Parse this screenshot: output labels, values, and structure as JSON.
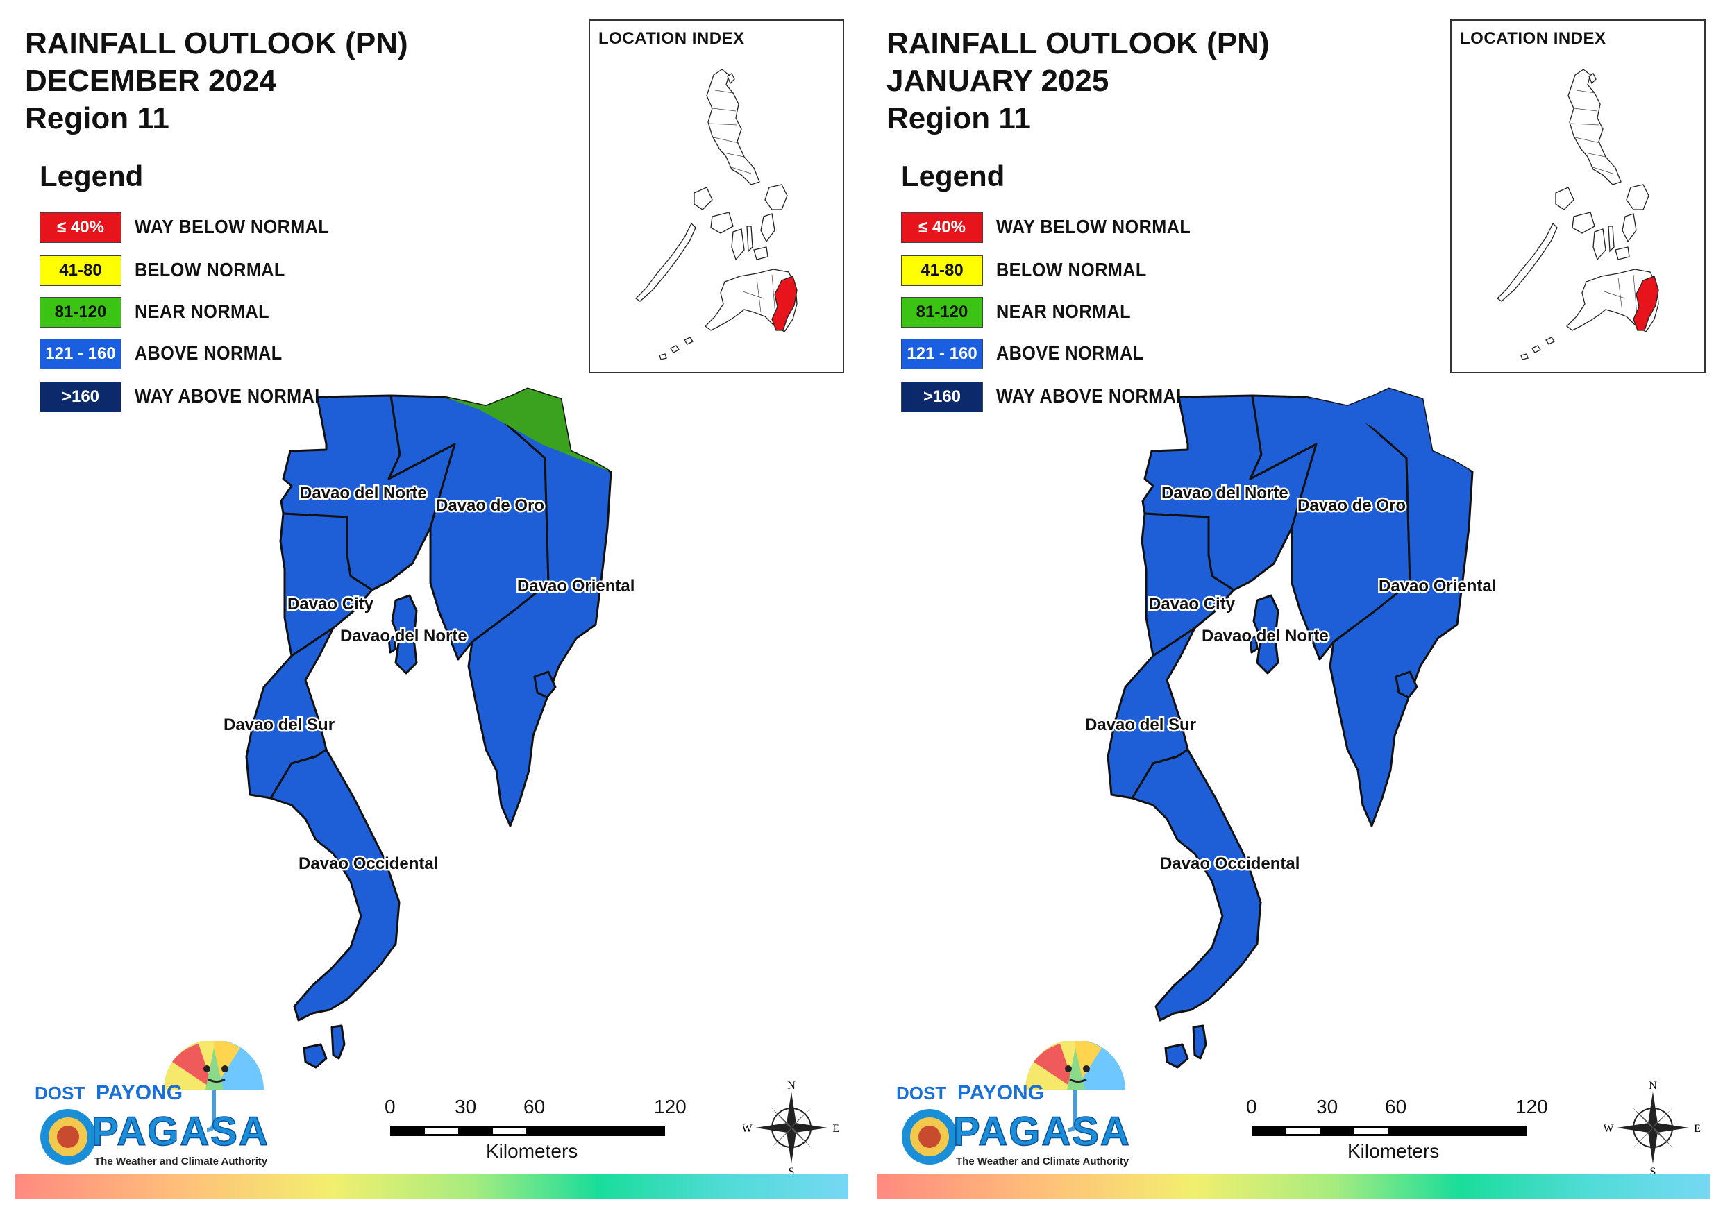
{
  "panels": [
    {
      "title_line1": "RAINFALL OUTLOOK (PN)",
      "title_line2": "DECEMBER 2024",
      "title_line3": "Region 11",
      "north_band_color": "#3aa21f",
      "main_fill_color": "#1e5fd8"
    },
    {
      "title_line1": "RAINFALL OUTLOOK (PN)",
      "title_line2": "JANUARY 2025",
      "title_line3": "Region 11",
      "north_band_color": "#1e5fd8",
      "main_fill_color": "#1e5fd8"
    }
  ],
  "legend": {
    "title": "Legend",
    "items": [
      {
        "range": "≤ 40%",
        "label": "WAY BELOW NORMAL",
        "color": "#e8141b",
        "text_color": "#ffffff"
      },
      {
        "range": "41-80",
        "label": "BELOW NORMAL",
        "color": "#ffff00",
        "text_color": "#111111"
      },
      {
        "range": "81-120",
        "label": "NEAR NORMAL",
        "color": "#3bc414",
        "text_color": "#111111"
      },
      {
        "range": "121 - 160",
        "label": "ABOVE NORMAL",
        "color": "#1a5fe0",
        "text_color": "#ffffff"
      },
      {
        "range": ">160",
        "label": "WAY ABOVE NORMAL",
        "color": "#0c2a6b",
        "text_color": "#ffffff"
      }
    ]
  },
  "inset": {
    "title": "LOCATION INDEX",
    "highlight_color": "#e8141b"
  },
  "provinces": {
    "davao_del_norte_top": "Davao del Norte",
    "davao_de_oro": "Davao de Oro",
    "davao_oriental": "Davao Oriental",
    "davao_city": "Davao City",
    "davao_del_norte_samal": "Davao del Norte",
    "davao_del_sur": "Davao del Sur",
    "davao_occidental": "Davao Occidental"
  },
  "logo": {
    "dost": "DOST",
    "payong": "PAYONG",
    "pagasa": "PAGASA",
    "tagline": "The Weather and Climate Authority"
  },
  "scale_bar": {
    "ticks": [
      "0",
      "30",
      "60",
      "120"
    ],
    "unit": "Kilometers"
  },
  "compass": {
    "n": "N",
    "e": "E",
    "s": "S",
    "w": "W"
  }
}
